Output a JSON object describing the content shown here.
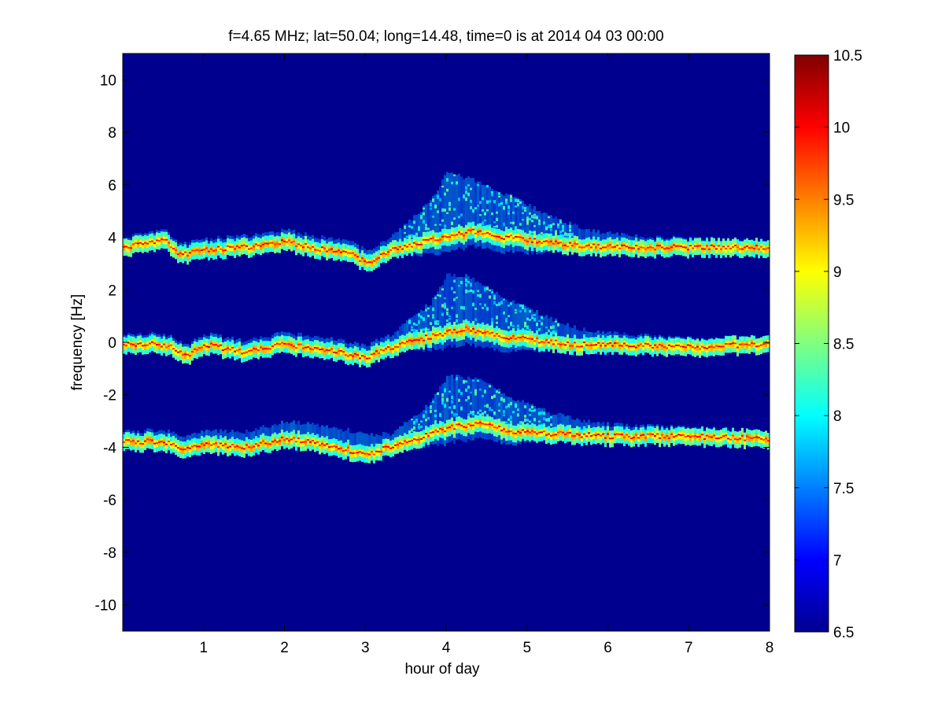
{
  "chart_data": {
    "type": "heatmap",
    "title": "f=4.65 MHz;  lat=50.04; long=14.48, time=0 is at 2014 04 03 00:00",
    "xlabel": "hour of day",
    "ylabel": "frequency [Hz]",
    "xlim": [
      0,
      8
    ],
    "ylim": [
      -11,
      11
    ],
    "xticks": [
      1,
      2,
      3,
      4,
      5,
      6,
      7,
      8
    ],
    "yticks": [
      -10,
      -8,
      -6,
      -4,
      -2,
      0,
      2,
      4,
      6,
      8,
      10
    ],
    "colormap": "jet",
    "background_color": "#00008F",
    "colorbar": {
      "range": [
        6.5,
        10.5
      ],
      "ticks": [
        6.5,
        7,
        7.5,
        8,
        8.5,
        9,
        9.5,
        10,
        10.5
      ]
    },
    "series": [
      {
        "center_trace": [
          [
            0.0,
            3.6
          ],
          [
            0.5,
            3.9
          ],
          [
            0.7,
            3.3
          ],
          [
            1.0,
            3.5
          ],
          [
            1.5,
            3.6
          ],
          [
            2.0,
            3.8
          ],
          [
            2.5,
            3.5
          ],
          [
            2.8,
            3.4
          ],
          [
            3.0,
            3.0
          ],
          [
            3.3,
            3.5
          ],
          [
            3.7,
            3.8
          ],
          [
            4.0,
            4.0
          ],
          [
            4.3,
            4.2
          ],
          [
            4.7,
            4.0
          ],
          [
            5.0,
            3.9
          ],
          [
            5.5,
            3.7
          ],
          [
            6.0,
            3.6
          ],
          [
            7.0,
            3.6
          ],
          [
            8.0,
            3.6
          ]
        ],
        "spread_max": [
          [
            0.0,
            0.4
          ],
          [
            3.3,
            0.5
          ],
          [
            3.8,
            1.5
          ],
          [
            4.0,
            2.5
          ],
          [
            4.3,
            2.0
          ],
          [
            4.8,
            1.6
          ],
          [
            5.3,
            1.0
          ],
          [
            5.8,
            0.6
          ],
          [
            6.5,
            0.4
          ],
          [
            8.0,
            0.3
          ]
        ]
      },
      {
        "center_trace": [
          [
            0.0,
            -0.1
          ],
          [
            0.5,
            -0.1
          ],
          [
            0.8,
            -0.5
          ],
          [
            1.0,
            -0.1
          ],
          [
            1.5,
            -0.4
          ],
          [
            2.0,
            -0.1
          ],
          [
            2.5,
            -0.3
          ],
          [
            3.0,
            -0.6
          ],
          [
            3.4,
            -0.1
          ],
          [
            3.8,
            0.2
          ],
          [
            4.2,
            0.5
          ],
          [
            4.7,
            0.2
          ],
          [
            5.0,
            0.1
          ],
          [
            5.5,
            -0.1
          ],
          [
            6.0,
            -0.1
          ],
          [
            7.0,
            -0.2
          ],
          [
            8.0,
            -0.1
          ]
        ],
        "spread_max": [
          [
            0.0,
            0.4
          ],
          [
            3.3,
            0.5
          ],
          [
            3.8,
            1.3
          ],
          [
            4.0,
            2.2
          ],
          [
            4.3,
            2.0
          ],
          [
            4.8,
            1.4
          ],
          [
            5.3,
            0.9
          ],
          [
            5.8,
            0.5
          ],
          [
            6.5,
            0.4
          ],
          [
            8.0,
            0.3
          ]
        ]
      },
      {
        "center_trace": [
          [
            0.0,
            -3.8
          ],
          [
            0.5,
            -3.8
          ],
          [
            0.8,
            -4.1
          ],
          [
            1.0,
            -3.9
          ],
          [
            1.5,
            -4.0
          ],
          [
            2.0,
            -3.7
          ],
          [
            2.5,
            -3.9
          ],
          [
            3.0,
            -4.3
          ],
          [
            3.5,
            -3.8
          ],
          [
            4.0,
            -3.3
          ],
          [
            4.4,
            -3.1
          ],
          [
            4.8,
            -3.4
          ],
          [
            5.3,
            -3.5
          ],
          [
            6.0,
            -3.6
          ],
          [
            7.0,
            -3.6
          ],
          [
            8.0,
            -3.7
          ]
        ],
        "spread_max": [
          [
            0.0,
            0.4
          ],
          [
            3.0,
            0.8
          ],
          [
            3.3,
            0.5
          ],
          [
            3.8,
            1.2
          ],
          [
            4.0,
            2.0
          ],
          [
            4.3,
            1.8
          ],
          [
            4.8,
            1.3
          ],
          [
            5.3,
            0.8
          ],
          [
            5.8,
            0.5
          ],
          [
            6.5,
            0.4
          ],
          [
            8.0,
            0.3
          ]
        ]
      }
    ]
  }
}
